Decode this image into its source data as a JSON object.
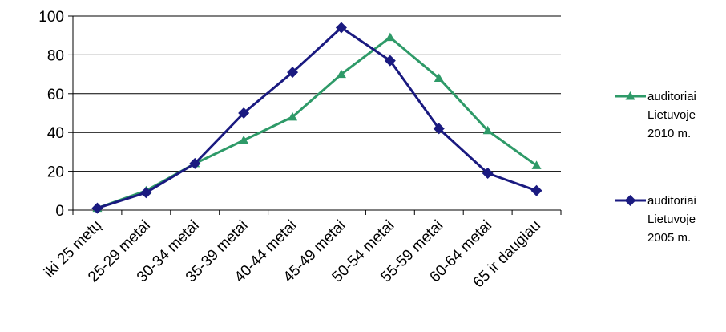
{
  "chart_data": {
    "type": "line",
    "title": "",
    "xlabel": "",
    "ylabel": "",
    "categories": [
      "iki 25 metų",
      "25-29 metai",
      "30-34 metai",
      "35-39 metai",
      "40-44 metai",
      "45-49 metai",
      "50-54 metai",
      "55-59 metai",
      "60-64 metai",
      "65 ir daugiau"
    ],
    "ylim": [
      0,
      100
    ],
    "yticks": [
      0,
      20,
      40,
      60,
      80,
      100
    ],
    "grid": true,
    "legend_position": "right",
    "series": [
      {
        "name_lines": [
          "auditoriai",
          "Lietuvoje",
          "2010 m."
        ],
        "color": "#2e9a68",
        "marker": "triangle",
        "values": [
          1,
          10,
          24,
          36,
          48,
          70,
          89,
          68,
          41,
          23
        ]
      },
      {
        "name_lines": [
          "auditoriai",
          "Lietuvoje",
          "2005 m."
        ],
        "color": "#1a1a80",
        "marker": "diamond",
        "values": [
          1,
          9,
          24,
          50,
          71,
          94,
          77,
          42,
          19,
          10
        ]
      }
    ]
  }
}
